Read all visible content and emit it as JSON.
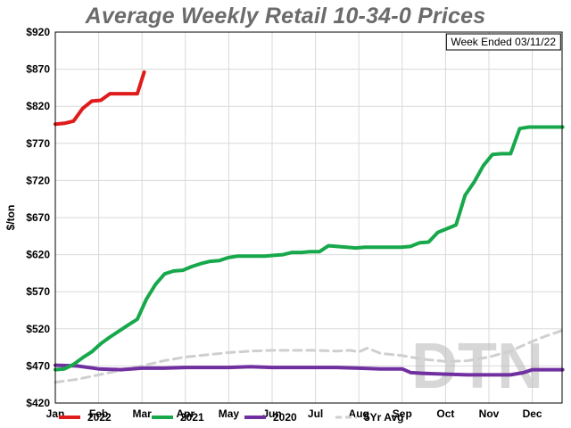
{
  "chart_data": {
    "type": "line",
    "title": "Average Weekly Retail 10-34-0 Prices",
    "note": "Week Ended 03/11/22",
    "ylabel": "$/ton",
    "xlabel": "",
    "ylim": [
      420,
      920
    ],
    "yticks": [
      420,
      470,
      520,
      570,
      620,
      670,
      720,
      770,
      820,
      870,
      920
    ],
    "ytick_labels": [
      "$420",
      "$470",
      "$520",
      "$570",
      "$620",
      "$670",
      "$720",
      "$770",
      "$820",
      "$870",
      "$920"
    ],
    "xlim": [
      0,
      11.7
    ],
    "xticks": [
      0,
      1,
      2,
      3,
      4,
      5,
      6,
      7,
      8,
      9,
      10,
      11
    ],
    "xtick_labels": [
      "Jan",
      "Feb",
      "Mar",
      "Apr",
      "May",
      "Jun",
      "Jul",
      "Aug",
      "Sep",
      "Oct",
      "Nov",
      "Dec"
    ],
    "grid": true,
    "legend_position": "bottom",
    "watermark": "DTN",
    "series": [
      {
        "name": "2022",
        "color": "#e01b1b",
        "dashed": false,
        "x": [
          0,
          0.21,
          0.42,
          0.63,
          0.84,
          1.05,
          1.26,
          1.47,
          1.68,
          1.89,
          2.05
        ],
        "y": [
          796,
          797,
          800,
          817,
          827,
          828,
          837,
          837,
          837,
          837,
          866
        ]
      },
      {
        "name": "2021",
        "color": "#17a84b",
        "dashed": false,
        "x": [
          0,
          0.21,
          0.42,
          0.63,
          0.84,
          1.05,
          1.26,
          1.47,
          1.68,
          1.89,
          2.1,
          2.31,
          2.52,
          2.73,
          2.94,
          3.15,
          3.36,
          3.57,
          3.78,
          3.99,
          4.2,
          4.41,
          4.62,
          4.83,
          5.04,
          5.25,
          5.46,
          5.67,
          5.88,
          6.09,
          6.3,
          6.51,
          6.72,
          6.93,
          7.14,
          7.35,
          7.56,
          7.77,
          7.98,
          8.19,
          8.4,
          8.61,
          8.82,
          9.03,
          9.24,
          9.45,
          9.66,
          9.87,
          10.08,
          10.29,
          10.5,
          10.71,
          10.92,
          11.13,
          11.34,
          11.55,
          11.7
        ],
        "y": [
          465,
          466,
          472,
          481,
          489,
          500,
          509,
          517,
          525,
          533,
          560,
          580,
          594,
          598,
          599,
          604,
          608,
          611,
          612,
          616,
          618,
          618,
          618,
          618,
          619,
          620,
          623,
          623,
          624,
          624,
          632,
          631,
          630,
          629,
          630,
          630,
          630,
          630,
          630,
          631,
          636,
          637,
          650,
          655,
          660,
          700,
          718,
          740,
          755,
          756,
          756,
          790,
          792,
          792,
          792,
          792,
          792
        ]
      },
      {
        "name": "2020",
        "color": "#7030a0",
        "dashed": false,
        "x": [
          0,
          0.5,
          1.0,
          1.5,
          2.0,
          2.5,
          3.0,
          3.5,
          4.0,
          4.5,
          5.0,
          5.5,
          6.0,
          6.5,
          7.0,
          7.5,
          8.0,
          8.2,
          8.5,
          9.0,
          9.5,
          10.0,
          10.5,
          10.8,
          11.0,
          11.3,
          11.7
        ],
        "y": [
          471,
          470,
          466,
          465,
          467,
          467,
          468,
          468,
          468,
          469,
          468,
          468,
          468,
          468,
          467,
          466,
          466,
          461,
          460,
          459,
          458,
          458,
          458,
          461,
          465,
          465,
          465
        ]
      },
      {
        "name": "5Yr Avg",
        "color": "#cfcfcf",
        "dashed": true,
        "x": [
          0,
          0.5,
          1.0,
          1.5,
          2.0,
          2.5,
          3.0,
          3.5,
          4.0,
          4.5,
          5.0,
          5.5,
          6.0,
          6.5,
          6.8,
          7.0,
          7.2,
          7.5,
          8.0,
          8.5,
          9.0,
          9.5,
          10.0,
          10.5,
          10.8,
          11.0,
          11.3,
          11.7
        ],
        "y": [
          448,
          452,
          458,
          464,
          470,
          477,
          482,
          485,
          488,
          490,
          491,
          491,
          491,
          490,
          491,
          489,
          494,
          487,
          484,
          479,
          476,
          477,
          482,
          490,
          498,
          503,
          510,
          518
        ]
      }
    ]
  }
}
